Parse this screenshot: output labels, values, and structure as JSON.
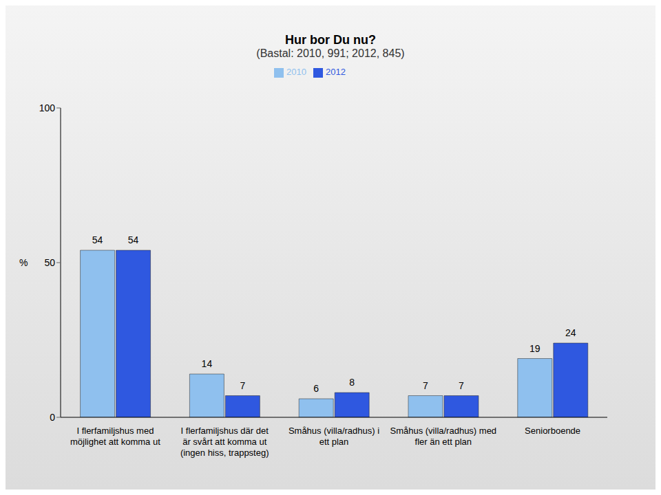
{
  "chart_data": {
    "type": "bar",
    "title": "Hur bor Du nu?",
    "subtitle": "(Bastal: 2010, 991; 2012, 845)",
    "y_label": "%",
    "categories": [
      "I flerfamiljshus med möjlighet att komma ut",
      "I flerfamiljshus där det är svårt att komma ut (ingen hiss, trappsteg)",
      "Småhus (villa/radhus) i ett plan",
      "Småhus (villa/radhus) med fler än ett plan",
      "Seniorboende"
    ],
    "series": [
      {
        "name": "2010",
        "color": "#8fc0ee",
        "values": [
          54,
          14,
          6,
          7,
          19
        ]
      },
      {
        "name": "2012",
        "color": "#2f58e0",
        "values": [
          54,
          7,
          8,
          7,
          24
        ]
      }
    ],
    "ylim": [
      0,
      100
    ],
    "yticks": [
      0,
      50,
      100
    ],
    "grid": false,
    "legend": "top",
    "data_labels": true
  }
}
